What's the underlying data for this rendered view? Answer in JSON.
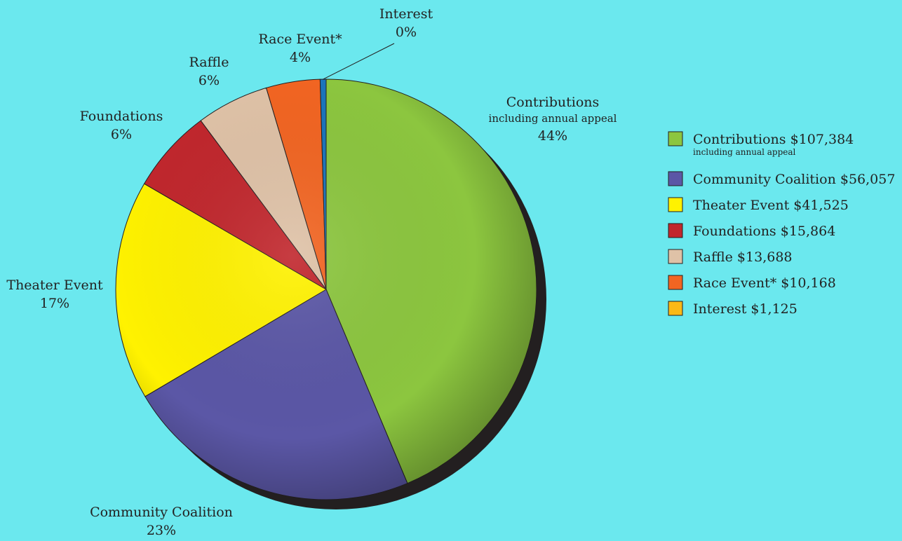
{
  "chart_data": {
    "type": "pie",
    "slices": [
      {
        "key": "contributions",
        "label": "Contributions",
        "sublabel": "including annual appeal",
        "percent_label": "44%",
        "value": 107384,
        "amount_label": "$107,384",
        "color": "#8cc63f"
      },
      {
        "key": "community",
        "label": "Community Coalition",
        "sublabel": "",
        "percent_label": "23%",
        "value": 56057,
        "amount_label": "$56,057",
        "color": "#5b57a6"
      },
      {
        "key": "theater",
        "label": "Theater Event",
        "sublabel": "",
        "percent_label": "17%",
        "value": 41525,
        "amount_label": "$41,525",
        "color": "#fff200"
      },
      {
        "key": "foundations",
        "label": "Foundations",
        "sublabel": "",
        "percent_label": "6%",
        "value": 15864,
        "amount_label": "$15,864",
        "color": "#c1272d"
      },
      {
        "key": "raffle",
        "label": "Raffle",
        "sublabel": "",
        "percent_label": "6%",
        "value": 13688,
        "amount_label": "$13,688",
        "color": "#dfc2a7"
      },
      {
        "key": "race",
        "label": "Race Event*",
        "sublabel": "",
        "percent_label": "4%",
        "value": 10168,
        "amount_label": "$10,168",
        "color": "#f26522"
      },
      {
        "key": "interest",
        "label": "Interest",
        "sublabel": "",
        "percent_label": "0%",
        "value": 1125,
        "amount_label": "$1,125",
        "color": "#1b75bc",
        "legend_color": "#fbb917"
      }
    ],
    "legend": {
      "placement": "right",
      "entries": [
        {
          "text": "Contributions $107,384",
          "subtext": "including annual appeal",
          "color": "#8cc63f"
        },
        {
          "text": "Community Coalition $56,057",
          "subtext": "",
          "color": "#5b57a6"
        },
        {
          "text": "Theater Event $41,525",
          "subtext": "",
          "color": "#fff200"
        },
        {
          "text": "Foundations $15,864",
          "subtext": "",
          "color": "#c1272d"
        },
        {
          "text": "Raffle $13,688",
          "subtext": "",
          "color": "#dfc2a7"
        },
        {
          "text": "Race Event* $10,168",
          "subtext": "",
          "color": "#f26522"
        },
        {
          "text": "Interest $1,125",
          "subtext": "",
          "color": "#fbb917"
        }
      ]
    }
  },
  "colors": {
    "background": "#6be8ee",
    "shadow": "#231f20"
  }
}
